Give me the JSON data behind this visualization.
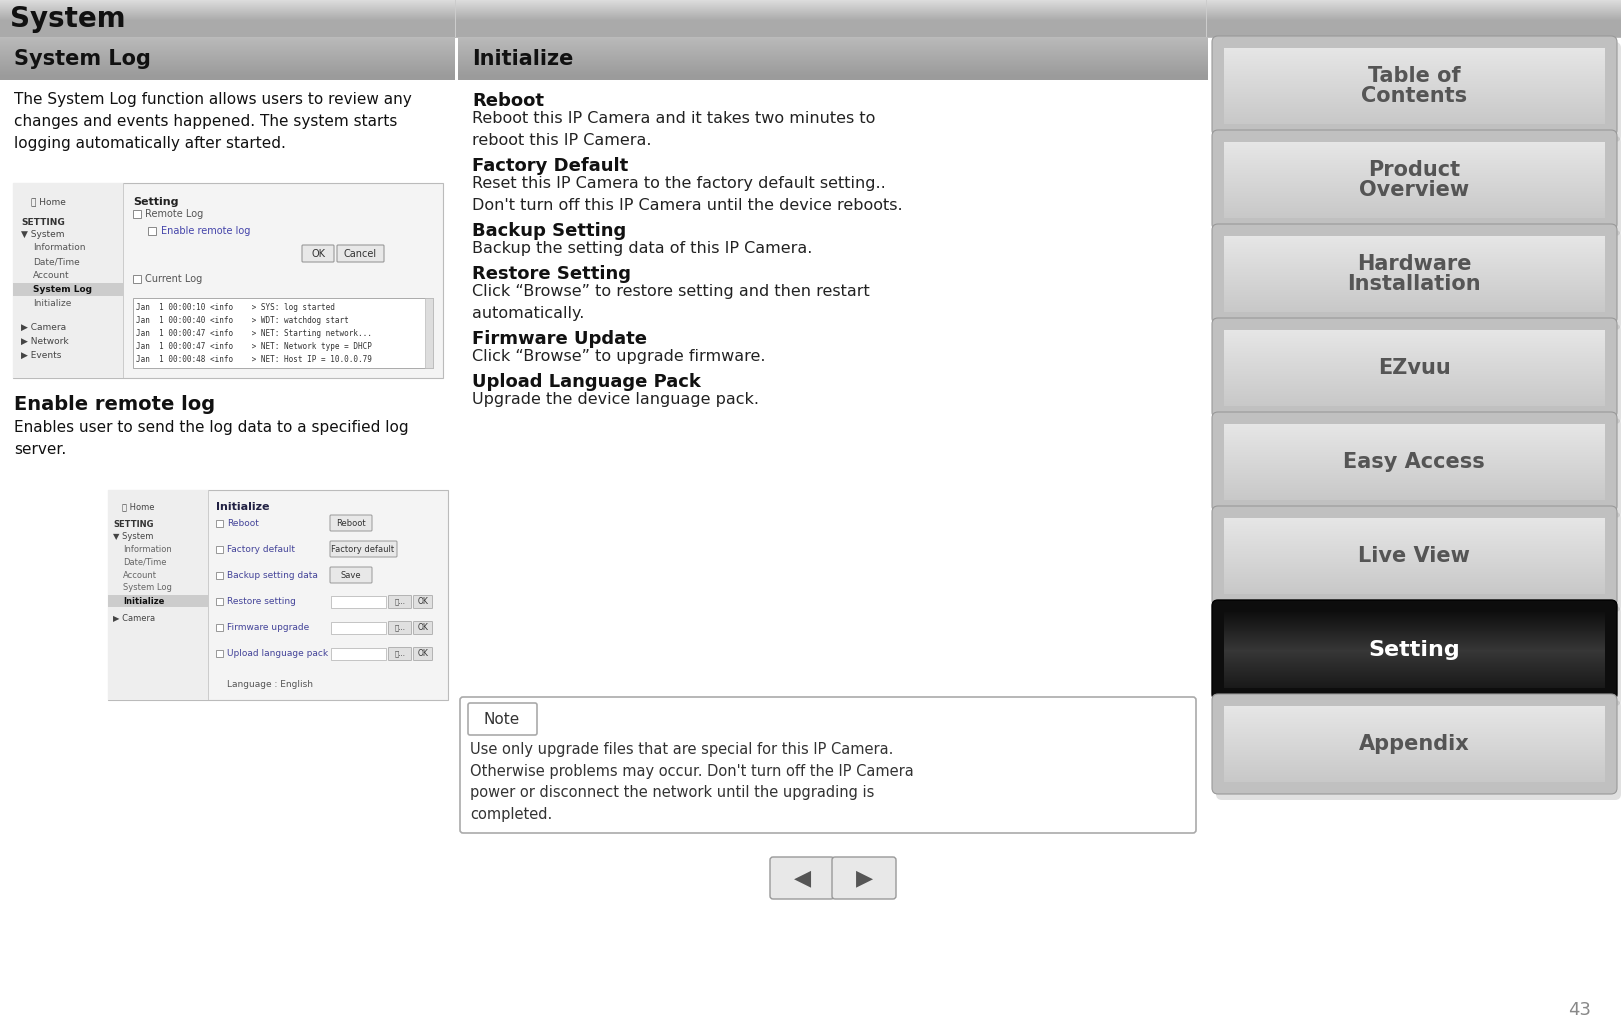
{
  "title": "System",
  "page_number": "43",
  "bg_color": "#ffffff",
  "section1_title": "System Log",
  "section1_body": "The System Log function allows users to review any\nchanges and events happened. The system starts\nlogging automatically after started.",
  "section1_sub_title": "Enable remote log",
  "section1_sub_body": "Enables user to send the log data to a specified log\nserver.",
  "section2_title": "Initialize",
  "reboot_title": "Reboot",
  "reboot_body": "Reboot this IP Camera and it takes two minutes to\nreboot this IP Camera.",
  "factory_title": "Factory Default",
  "factory_body": "Reset this IP Camera to the factory default setting..\nDon't turn off this IP Camera until the device reboots.",
  "backup_title": "Backup Setting",
  "backup_body": "Backup the setting data of this IP Camera.",
  "restore_title": "Restore Setting",
  "restore_body": "Click “Browse” to restore setting and then restart\nautomatically.",
  "firmware_title": "Firmware Update",
  "firmware_body": "Click “Browse” to upgrade firmware.",
  "upload_title": "Upload Language Pack",
  "upload_body": "Upgrade the device language pack.",
  "note_text": "Use only upgrade files that are special for this IP Camera.\nOtherwise problems may occur. Don't turn off the IP Camera\npower or disconnect the network until the upgrading is\ncompleted.",
  "log_lines": [
    "Jan  1 00:00:10 <info    > SYS: log started",
    "Jan  1 00:00:40 <info    > WDT: watchdog start",
    "Jan  1 00:00:47 <info    > NET: Starting network...",
    "Jan  1 00:00:47 <info    > NET: Network type = DHCP",
    "Jan  1 00:00:48 <info    > NET: Host IP = 10.0.0.79"
  ],
  "nav_buttons": [
    "Table of\nContents",
    "Product\nOverview",
    "Hardware\nInstallation",
    "EZvuu",
    "Easy Access",
    "Live View",
    "Setting",
    "Appendix"
  ],
  "nav_active": 6,
  "nav_text_normal": "#555555",
  "nav_text_active": "#ffffff"
}
